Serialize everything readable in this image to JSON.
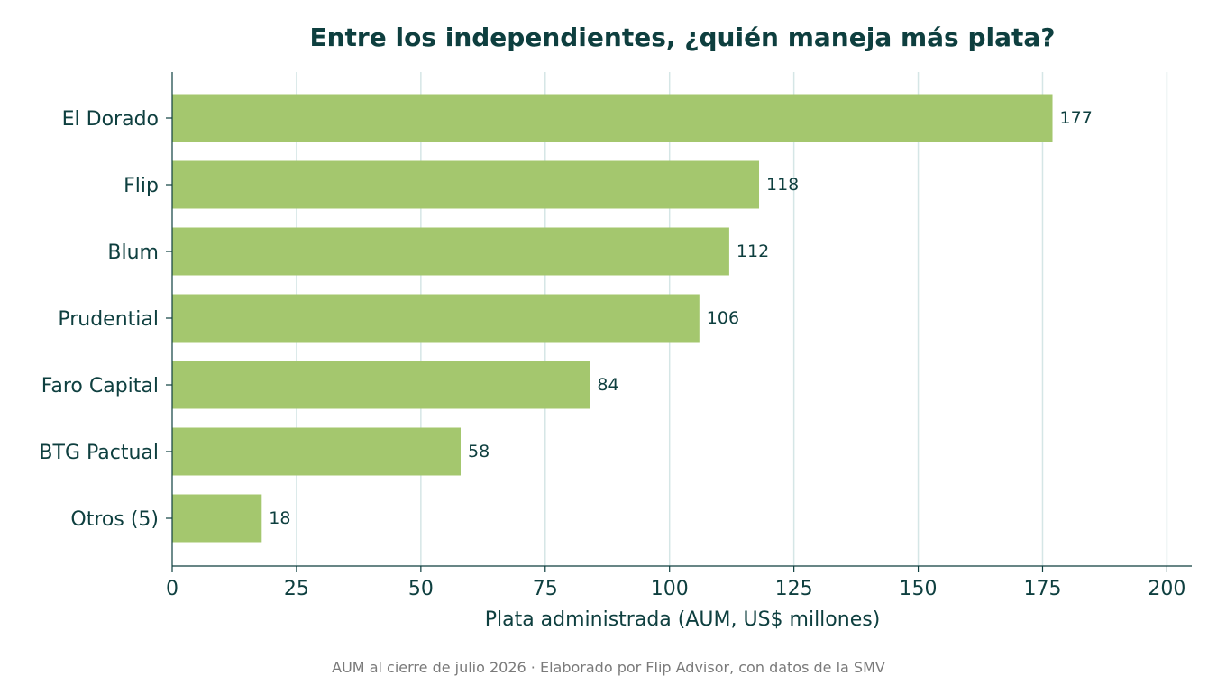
{
  "chart_data": {
    "type": "bar",
    "orientation": "horizontal",
    "title": "Entre los independientes, ¿quién maneja más plata?",
    "categories": [
      "El Dorado",
      "Flip",
      "Blum",
      "Prudential",
      "Faro Capital",
      "BTG Pactual",
      "Otros (5)"
    ],
    "values": [
      177,
      118,
      112,
      106,
      84,
      58,
      18
    ],
    "value_labels": [
      "177",
      "118",
      "112",
      "106",
      "84",
      "58",
      "18"
    ],
    "xlabel": "Plata administrada (AUM, US$ millones)",
    "ylabel": "",
    "xlim": [
      0,
      205
    ],
    "xticks": [
      0,
      25,
      50,
      75,
      100,
      125,
      150,
      175,
      200
    ],
    "xtick_labels": [
      "0",
      "25",
      "50",
      "75",
      "100",
      "125",
      "150",
      "175",
      "200"
    ],
    "grid": "vertical",
    "legend": "none",
    "footnote": "AUM al cierre de julio 2026 · Elaborado por Flip Advisor, con datos de la SMV",
    "colors": {
      "bar": "#a4c76e",
      "text": "#0e3f3f",
      "grid": "#d5e6e6",
      "axis": "#0e3f3f",
      "footnote": "#7a7a7a"
    }
  }
}
